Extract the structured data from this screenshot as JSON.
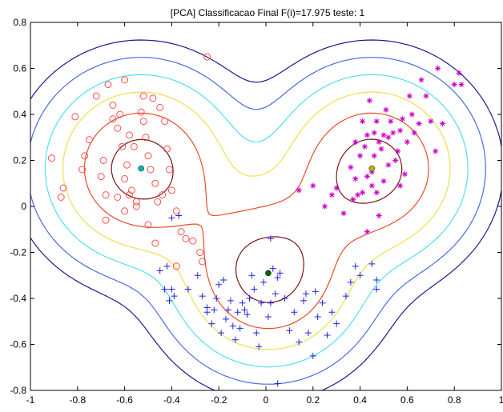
{
  "chart_data": {
    "type": "scatter",
    "title": "[PCA] Classificacao Final F(i)=17.975 teste: 1",
    "xlim": [
      -1,
      1
    ],
    "ylim": [
      -0.8,
      0.8
    ],
    "xticks": [
      -1,
      -0.8,
      -0.6,
      -0.4,
      -0.2,
      0,
      0.2,
      0.4,
      0.6,
      0.8,
      1
    ],
    "xtick_labels": [
      "-1",
      "-0.8",
      "-0.6",
      "-0.4",
      "-0.2",
      "0",
      "0.2",
      "0.4",
      "0.6",
      "0.8",
      "1"
    ],
    "yticks": [
      -0.8,
      -0.6,
      -0.4,
      -0.2,
      0,
      0.2,
      0.4,
      0.6,
      0.8
    ],
    "ytick_labels": [
      "-0.8",
      "-0.6",
      "-0.4",
      "-0.2",
      "0",
      "0.2",
      "0.4",
      "0.6",
      "0.8"
    ],
    "grid": false,
    "legend": "none",
    "series": [
      {
        "marker": "circle",
        "color": "#ff4a4a",
        "points": [
          [
            -0.91,
            0.21
          ],
          [
            -0.86,
            0.08
          ],
          [
            -0.87,
            0.04
          ],
          [
            -0.81,
            0.39
          ],
          [
            -0.77,
            0.22
          ],
          [
            -0.78,
            0.16
          ],
          [
            -0.75,
            0.29
          ],
          [
            -0.72,
            0.48
          ],
          [
            -0.7,
            0.13
          ],
          [
            -0.69,
            0.2
          ],
          [
            -0.68,
            0.05
          ],
          [
            -0.67,
            0.53
          ],
          [
            -0.65,
            0.44
          ],
          [
            -0.65,
            0.38
          ],
          [
            -0.63,
            0.34
          ],
          [
            -0.62,
            0.4
          ],
          [
            -0.61,
            0.26
          ],
          [
            -0.6,
            0.55
          ],
          [
            -0.6,
            0.12
          ],
          [
            -0.59,
            0.18
          ],
          [
            -0.58,
            0.31
          ],
          [
            -0.57,
            0.07
          ],
          [
            -0.56,
            0.26
          ],
          [
            -0.55,
            0.02
          ],
          [
            -0.53,
            0.41
          ],
          [
            -0.52,
            0.48
          ],
          [
            -0.52,
            0.37
          ],
          [
            -0.51,
            0.3
          ],
          [
            -0.5,
            0.22
          ],
          [
            -0.49,
            0.16
          ],
          [
            -0.48,
            0.47
          ],
          [
            -0.47,
            0.1
          ],
          [
            -0.46,
            0.02
          ],
          [
            -0.45,
            0.43
          ],
          [
            -0.43,
            0.37
          ],
          [
            -0.42,
            0.25
          ],
          [
            -0.41,
            0.16
          ],
          [
            -0.4,
            0.07
          ],
          [
            -0.38,
            -0.02
          ],
          [
            -0.36,
            -0.11
          ],
          [
            -0.34,
            -0.14
          ],
          [
            -0.31,
            -0.15
          ],
          [
            -0.28,
            -0.2
          ],
          [
            -0.27,
            -0.24
          ],
          [
            -0.25,
            0.65
          ],
          [
            -0.63,
            0.04
          ],
          [
            -0.68,
            -0.06
          ],
          [
            -0.55,
            0.0
          ],
          [
            -0.47,
            -0.16
          ],
          [
            -0.38,
            -0.26
          ],
          [
            -0.58,
            0.05
          ],
          [
            -0.44,
            0.05
          ],
          [
            -0.6,
            -0.02
          ],
          [
            -0.5,
            -0.08
          ]
        ]
      },
      {
        "marker": "star",
        "color": "#cc00cc",
        "points": [
          [
            0.14,
            0.07
          ],
          [
            0.2,
            0.09
          ],
          [
            0.25,
            0.0
          ],
          [
            0.28,
            0.05
          ],
          [
            0.3,
            0.08
          ],
          [
            0.33,
            -0.03
          ],
          [
            0.36,
            0.17
          ],
          [
            0.37,
            0.03
          ],
          [
            0.38,
            0.28
          ],
          [
            0.38,
            0.12
          ],
          [
            0.4,
            0.22
          ],
          [
            0.41,
            0.06
          ],
          [
            0.41,
            0.37
          ],
          [
            0.42,
            0.26
          ],
          [
            0.43,
            0.31
          ],
          [
            0.43,
            0.13
          ],
          [
            0.44,
            0.46
          ],
          [
            0.45,
            0.15
          ],
          [
            0.46,
            0.22
          ],
          [
            0.46,
            0.32
          ],
          [
            0.47,
            0.06
          ],
          [
            0.47,
            0.37
          ],
          [
            0.48,
            0.28
          ],
          [
            0.48,
            -0.04
          ],
          [
            0.49,
            0.25
          ],
          [
            0.5,
            0.31
          ],
          [
            0.5,
            0.11
          ],
          [
            0.51,
            0.42
          ],
          [
            0.52,
            0.18
          ],
          [
            0.52,
            0.3
          ],
          [
            0.53,
            0.37
          ],
          [
            0.54,
            0.32
          ],
          [
            0.55,
            0.2
          ],
          [
            0.56,
            0.24
          ],
          [
            0.57,
            0.33
          ],
          [
            0.58,
            0.38
          ],
          [
            0.59,
            0.14
          ],
          [
            0.6,
            0.28
          ],
          [
            0.61,
            0.48
          ],
          [
            0.62,
            0.4
          ],
          [
            0.63,
            0.32
          ],
          [
            0.65,
            0.36
          ],
          [
            0.66,
            0.55
          ],
          [
            0.68,
            0.48
          ],
          [
            0.7,
            0.37
          ],
          [
            0.72,
            0.24
          ],
          [
            0.73,
            0.6
          ],
          [
            0.75,
            0.36
          ],
          [
            0.8,
            0.53
          ],
          [
            0.82,
            0.58
          ],
          [
            0.83,
            0.53
          ],
          [
            0.43,
            -0.11
          ],
          [
            0.39,
            0.05
          ],
          [
            0.45,
            0.09
          ],
          [
            0.57,
            0.09
          ]
        ]
      },
      {
        "marker": "plus",
        "color": "#2222dd",
        "points": [
          [
            -0.45,
            -0.28
          ],
          [
            -0.43,
            -0.36
          ],
          [
            -0.42,
            -0.26
          ],
          [
            -0.41,
            -0.41
          ],
          [
            -0.4,
            -0.36
          ],
          [
            -0.39,
            -0.39
          ],
          [
            -0.37,
            -0.04
          ],
          [
            -0.33,
            -0.36
          ],
          [
            -0.29,
            -0.3
          ],
          [
            -0.27,
            -0.39
          ],
          [
            -0.25,
            -0.44
          ],
          [
            -0.25,
            -0.46
          ],
          [
            -0.23,
            -0.51
          ],
          [
            -0.22,
            -0.45
          ],
          [
            -0.21,
            -0.4
          ],
          [
            -0.2,
            -0.34
          ],
          [
            -0.19,
            -0.55
          ],
          [
            -0.18,
            -0.32
          ],
          [
            -0.17,
            -0.49
          ],
          [
            -0.16,
            -0.45
          ],
          [
            -0.15,
            -0.41
          ],
          [
            -0.14,
            -0.52
          ],
          [
            -0.13,
            -0.58
          ],
          [
            -0.12,
            -0.46
          ],
          [
            -0.11,
            -0.53
          ],
          [
            -0.1,
            -0.42
          ],
          [
            -0.09,
            -0.45
          ],
          [
            -0.08,
            -0.47
          ],
          [
            -0.07,
            -0.4
          ],
          [
            -0.06,
            -0.3
          ],
          [
            -0.05,
            -0.36
          ],
          [
            -0.04,
            -0.55
          ],
          [
            -0.03,
            -0.61
          ],
          [
            -0.02,
            -0.42
          ],
          [
            -0.01,
            -0.33
          ],
          [
            0.01,
            -0.48
          ],
          [
            0.02,
            -0.42
          ],
          [
            0.03,
            -0.27
          ],
          [
            0.04,
            -0.38
          ],
          [
            0.05,
            -0.31
          ],
          [
            0.06,
            -0.29
          ],
          [
            0.08,
            -0.4
          ],
          [
            0.1,
            -0.54
          ],
          [
            0.12,
            -0.46
          ],
          [
            0.14,
            -0.59
          ],
          [
            0.16,
            -0.41
          ],
          [
            0.17,
            -0.38
          ],
          [
            0.18,
            -0.55
          ],
          [
            0.2,
            -0.65
          ],
          [
            0.21,
            -0.37
          ],
          [
            0.22,
            -0.48
          ],
          [
            0.24,
            -0.42
          ],
          [
            0.26,
            -0.56
          ],
          [
            0.28,
            -0.46
          ],
          [
            0.3,
            -0.51
          ],
          [
            0.34,
            -0.39
          ],
          [
            0.36,
            -0.33
          ],
          [
            0.38,
            -0.26
          ],
          [
            0.4,
            -0.3
          ],
          [
            0.45,
            -0.25
          ],
          [
            0.47,
            -0.32
          ],
          [
            0.47,
            -0.36
          ],
          [
            0.05,
            -0.77
          ],
          [
            0.02,
            -0.14
          ],
          [
            -0.4,
            -0.05
          ]
        ]
      }
    ],
    "centroids": [
      {
        "x": -0.53,
        "y": 0.165,
        "color": "#00b4b4"
      },
      {
        "x": 0.45,
        "y": 0.165,
        "color": "#b8b800"
      },
      {
        "x": 0.01,
        "y": -0.29,
        "color": "#006400"
      }
    ],
    "contour_colors": [
      "#7a1515",
      "#e84a2a",
      "#f0e04a",
      "#4fe0ee",
      "#4a6ae8",
      "#1a1a90"
    ]
  }
}
